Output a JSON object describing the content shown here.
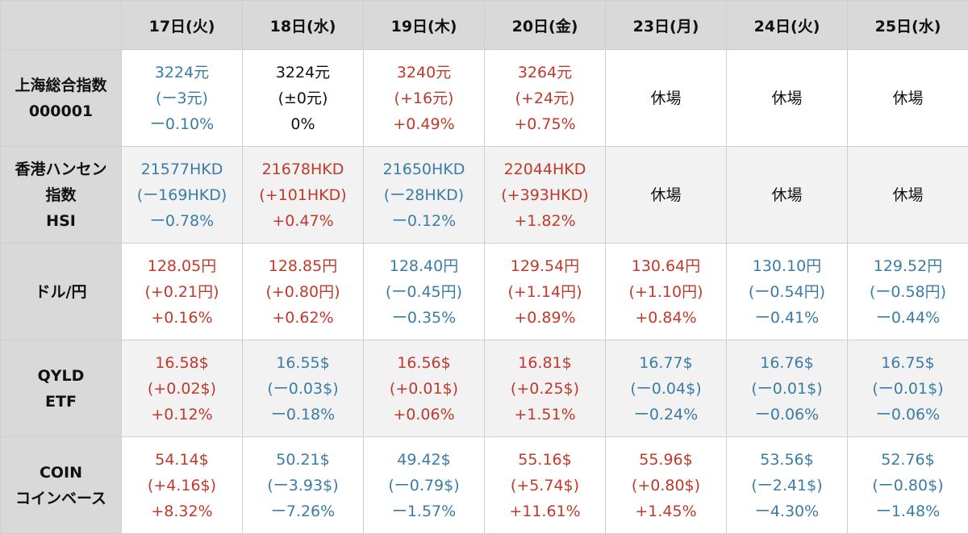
{
  "colors": {
    "up": "#c0392b",
    "down": "#3b7ca6",
    "flat": "#111111",
    "header_bg": "#d9d9d9"
  },
  "columns": [
    "17日(火)",
    "18日(水)",
    "19日(木)",
    "20日(金)",
    "23日(月)",
    "24日(火)",
    "25日(水)"
  ],
  "rows": [
    {
      "label": [
        "上海総合指数",
        "000001"
      ],
      "cells": [
        {
          "tone": "down",
          "lines": [
            "3224元",
            "(ー3元)",
            "ー0.10%"
          ]
        },
        {
          "tone": "flat",
          "lines": [
            "3224元",
            "(±0元)",
            "0%"
          ]
        },
        {
          "tone": "up",
          "lines": [
            "3240元",
            "(+16元)",
            "+0.49%"
          ]
        },
        {
          "tone": "up",
          "lines": [
            "3264元",
            "(+24元)",
            "+0.75%"
          ]
        },
        {
          "tone": "closed",
          "lines": [
            "休場"
          ]
        },
        {
          "tone": "closed",
          "lines": [
            "休場"
          ]
        },
        {
          "tone": "closed",
          "lines": [
            "休場"
          ]
        }
      ]
    },
    {
      "label": [
        "香港ハンセン",
        "指数",
        "HSI"
      ],
      "cells": [
        {
          "tone": "down",
          "lines": [
            "21577HKD",
            "(ー169HKD)",
            "ー0.78%"
          ]
        },
        {
          "tone": "up",
          "lines": [
            "21678HKD",
            "(+101HKD)",
            "+0.47%"
          ]
        },
        {
          "tone": "down",
          "lines": [
            "21650HKD",
            "(ー28HKD)",
            "ー0.12%"
          ]
        },
        {
          "tone": "up",
          "lines": [
            "22044HKD",
            "(+393HKD)",
            "+1.82%"
          ]
        },
        {
          "tone": "closed",
          "lines": [
            "休場"
          ]
        },
        {
          "tone": "closed",
          "lines": [
            "休場"
          ]
        },
        {
          "tone": "closed",
          "lines": [
            "休場"
          ]
        }
      ]
    },
    {
      "label": [
        "ドル/円"
      ],
      "cells": [
        {
          "tone": "up",
          "lines": [
            "128.05円",
            "(+0.21円)",
            "+0.16%"
          ]
        },
        {
          "tone": "up",
          "lines": [
            "128.85円",
            "(+0.80円)",
            "+0.62%"
          ]
        },
        {
          "tone": "down",
          "lines": [
            "128.40円",
            "(ー0.45円)",
            "ー0.35%"
          ]
        },
        {
          "tone": "up",
          "lines": [
            "129.54円",
            "(+1.14円)",
            "+0.89%"
          ]
        },
        {
          "tone": "up",
          "lines": [
            "130.64円",
            "(+1.10円)",
            "+0.84%"
          ]
        },
        {
          "tone": "down",
          "lines": [
            "130.10円",
            "(ー0.54円)",
            "ー0.41%"
          ]
        },
        {
          "tone": "down",
          "lines": [
            "129.52円",
            "(ー0.58円)",
            "ー0.44%"
          ]
        }
      ]
    },
    {
      "label": [
        "QYLD",
        "ETF"
      ],
      "cells": [
        {
          "tone": "up",
          "lines": [
            "16.58$",
            "(+0.02$)",
            "+0.12%"
          ]
        },
        {
          "tone": "down",
          "lines": [
            "16.55$",
            "(ー0.03$)",
            "ー0.18%"
          ]
        },
        {
          "tone": "up",
          "lines": [
            "16.56$",
            "(+0.01$)",
            "+0.06%"
          ]
        },
        {
          "tone": "up",
          "lines": [
            "16.81$",
            "(+0.25$)",
            "+1.51%"
          ]
        },
        {
          "tone": "down",
          "lines": [
            "16.77$",
            "(ー0.04$)",
            "ー0.24%"
          ]
        },
        {
          "tone": "down",
          "lines": [
            "16.76$",
            "(ー0.01$)",
            "ー0.06%"
          ]
        },
        {
          "tone": "down",
          "lines": [
            "16.75$",
            "(ー0.01$)",
            "ー0.06%"
          ]
        }
      ]
    },
    {
      "label": [
        "COIN",
        "コインベース"
      ],
      "cells": [
        {
          "tone": "up",
          "lines": [
            "54.14$",
            "(+4.16$)",
            "+8.32%"
          ]
        },
        {
          "tone": "down",
          "lines": [
            "50.21$",
            "(ー3.93$)",
            "ー7.26%"
          ]
        },
        {
          "tone": "down",
          "lines": [
            "49.42$",
            "(ー0.79$)",
            "ー1.57%"
          ]
        },
        {
          "tone": "up",
          "lines": [
            "55.16$",
            "(+5.74$)",
            "+11.61%"
          ]
        },
        {
          "tone": "up",
          "lines": [
            "55.96$",
            "(+0.80$)",
            "+1.45%"
          ]
        },
        {
          "tone": "down",
          "lines": [
            "53.56$",
            "(ー2.41$)",
            "ー4.30%"
          ]
        },
        {
          "tone": "down",
          "lines": [
            "52.76$",
            "(ー0.80$)",
            "ー1.48%"
          ]
        }
      ]
    }
  ]
}
